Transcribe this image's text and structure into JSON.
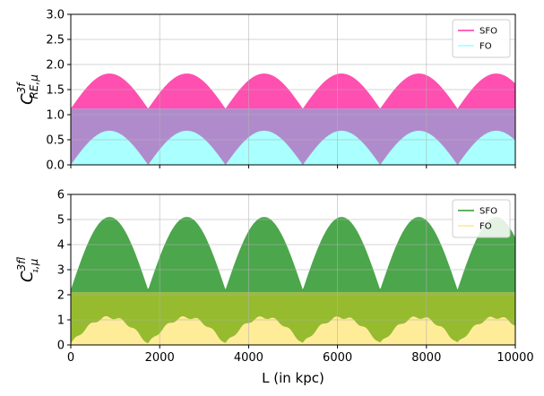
{
  "chart_data": [
    {
      "type": "area",
      "ylabel": "C^{3f}_{RE,μ}",
      "ylabel_main": "C",
      "ylabel_sup": "3f",
      "ylabel_sub": "RE,μ",
      "xlabel": "",
      "xlim": [
        0,
        10000
      ],
      "ylim": [
        0,
        3.0
      ],
      "x_ticks": [
        0,
        2000,
        4000,
        6000,
        8000,
        10000
      ],
      "y_ticks": [
        "0.0",
        "0.5",
        "1.0",
        "1.5",
        "2.0",
        "2.5",
        "3.0"
      ],
      "grid": true,
      "legend_position": "top-right",
      "period_kpc": 1740,
      "peak_offset_kpc": 870,
      "series": [
        {
          "name": "SFO",
          "color": "#ff4fb0",
          "x": [
            0,
            435,
            870,
            1305,
            1740
          ],
          "values": [
            1.12,
            1.55,
            1.82,
            1.55,
            1.12
          ],
          "floor": 1.12
        },
        {
          "name": "FO",
          "color": "#aaffff",
          "x": [
            0,
            435,
            870,
            1305,
            1740
          ],
          "values": [
            0.0,
            0.4,
            0.68,
            0.4,
            0.0
          ]
        }
      ],
      "band": {
        "from": 0.0,
        "to": 1.12,
        "color": "#b08bcc"
      }
    },
    {
      "type": "area",
      "ylabel": "C^{3f}_{l_1,μ}",
      "ylabel_main": "C",
      "ylabel_sup": "3f",
      "ylabel_sub": "l₁,μ",
      "xlabel": "L (in kpc)",
      "xlim": [
        0,
        10000
      ],
      "ylim": [
        0,
        6
      ],
      "x_ticks": [
        "0",
        "2000",
        "4000",
        "6000",
        "8000",
        "10000"
      ],
      "y_ticks": [
        "0",
        "1",
        "2",
        "3",
        "4",
        "5",
        "6"
      ],
      "grid": true,
      "legend_position": "top-right",
      "period_kpc": 1740,
      "peak_offset_kpc": 870,
      "series": [
        {
          "name": "SFO",
          "color": "#4ca64c",
          "x": [
            0,
            435,
            870,
            1305,
            1740
          ],
          "values": [
            2.2,
            4.2,
            5.1,
            4.2,
            2.2
          ],
          "floor": 2.1
        },
        {
          "name": "FO",
          "color": "#ffec99",
          "x": [
            0,
            435,
            870,
            1305,
            1740
          ],
          "values": [
            0.05,
            0.65,
            1.1,
            0.65,
            0.05
          ]
        }
      ],
      "band": {
        "from": 0.0,
        "to": 2.1,
        "color": "#96bb2f"
      }
    }
  ]
}
